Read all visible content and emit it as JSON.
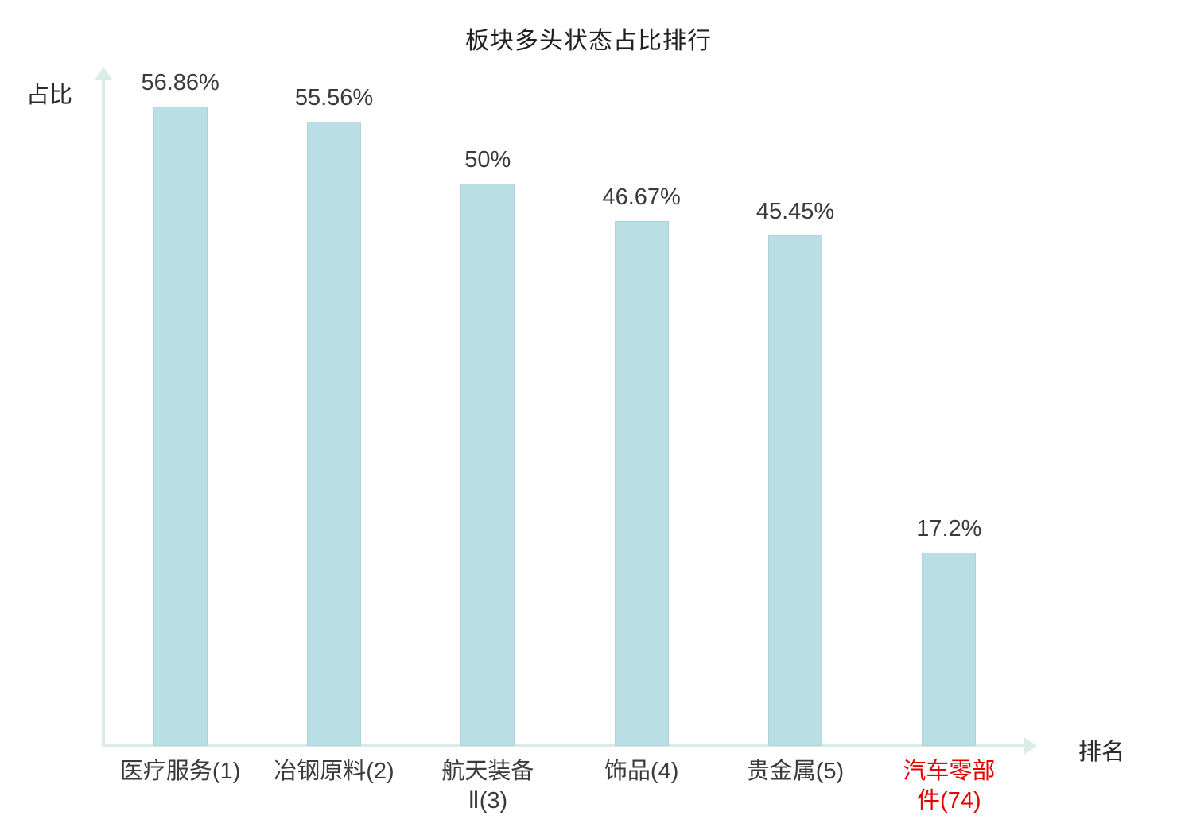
{
  "title": "板块多头状态占比排行",
  "axes": {
    "y_label": "占比",
    "x_label": "排名"
  },
  "chart_data": {
    "type": "bar",
    "title": "板块多头状态占比排行",
    "xlabel": "排名",
    "ylabel": "占比",
    "categories": [
      "医疗服务(1)",
      "冶钢原料(2)",
      "航天装备Ⅱ(3)",
      "饰品(4)",
      "贵金属(5)",
      "汽车零部件(74)"
    ],
    "category_lines": [
      [
        "医疗服务(1)"
      ],
      [
        "冶钢原料(2)"
      ],
      [
        "航天装备",
        "Ⅱ(3)"
      ],
      [
        "饰品(4)"
      ],
      [
        "贵金属(5)"
      ],
      [
        "汽车零部",
        "件(74)"
      ]
    ],
    "values": [
      56.86,
      55.56,
      50,
      46.67,
      45.45,
      17.2
    ],
    "value_labels": [
      "56.86%",
      "55.56%",
      "50%",
      "46.67%",
      "45.45%",
      "17.2%"
    ],
    "highlight_index": 5,
    "highlight_color": "#e60000",
    "bar_color": "#b9dee3",
    "axis_color": "#d9ede6",
    "ylim": [
      0,
      60
    ],
    "grid": false,
    "legend": "none"
  }
}
